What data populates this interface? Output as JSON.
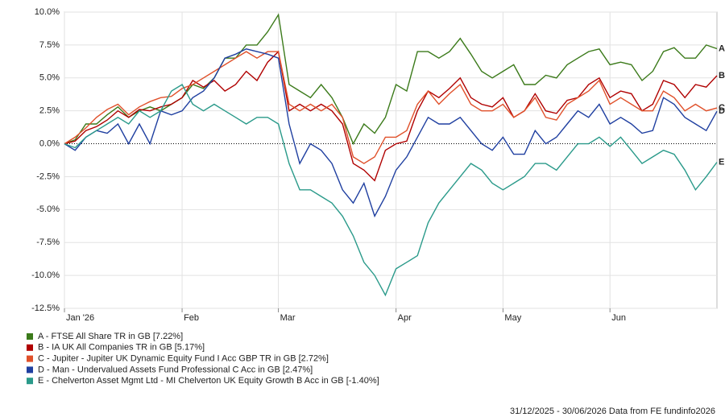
{
  "chart_data": {
    "type": "line",
    "categories": [
      "Jan '26",
      null,
      null,
      null,
      null,
      null,
      null,
      null,
      null,
      null,
      null,
      "Feb",
      null,
      null,
      null,
      null,
      null,
      null,
      null,
      null,
      "Mar",
      null,
      null,
      null,
      null,
      null,
      null,
      null,
      null,
      null,
      null,
      "Apr",
      null,
      null,
      null,
      null,
      null,
      null,
      null,
      null,
      null,
      "May",
      null,
      null,
      null,
      null,
      null,
      null,
      null,
      null,
      null,
      "Jun",
      null,
      null,
      null,
      null,
      null,
      null,
      null,
      null,
      null,
      null
    ],
    "series": [
      {
        "name": "A - FTSE All Share TR in GB [7.22%]",
        "label": "A",
        "color": "#3b7a1a",
        "values": [
          0,
          0.3,
          1.5,
          1.5,
          2.2,
          2.8,
          2.0,
          2.5,
          2.8,
          2.5,
          3.0,
          3.5,
          4.5,
          4.2,
          5.0,
          6.5,
          6.5,
          7.5,
          7.5,
          8.5,
          9.8,
          4.5,
          4.0,
          3.5,
          4.5,
          3.5,
          2.0,
          0,
          1.5,
          0.8,
          2.0,
          4.5,
          4.0,
          7.0,
          7.0,
          6.5,
          7.0,
          8.0,
          6.8,
          5.5,
          5.0,
          5.5,
          6.0,
          4.5,
          4.5,
          5.2,
          5.0,
          6.0,
          6.5,
          7.0,
          7.2,
          6.0,
          6.2,
          6.0,
          4.8,
          5.5,
          7.0,
          7.3,
          6.5,
          6.5,
          7.5,
          7.22
        ]
      },
      {
        "name": "B - IA UK All Companies TR in GB [5.17%]",
        "label": "B",
        "color": "#b00000",
        "values": [
          0,
          0.2,
          1.0,
          1.3,
          1.8,
          2.5,
          2.0,
          2.6,
          2.5,
          2.8,
          3.0,
          3.5,
          4.8,
          4.3,
          4.8,
          4.0,
          4.5,
          5.5,
          4.8,
          6.2,
          7.0,
          2.5,
          3.0,
          2.5,
          3.0,
          2.5,
          1.5,
          -1.5,
          -2.0,
          -2.8,
          -0.5,
          0,
          0.2,
          2.5,
          4.0,
          3.5,
          4.2,
          5.0,
          3.5,
          3.0,
          2.8,
          3.5,
          2.0,
          2.5,
          3.8,
          2.5,
          2.3,
          3.3,
          3.5,
          4.5,
          5.0,
          3.5,
          4.0,
          3.8,
          2.5,
          3.0,
          4.8,
          4.5,
          3.5,
          4.5,
          4.3,
          5.17
        ]
      },
      {
        "name": "C - Jupiter - Jupiter UK Dynamic Equity Fund I Acc GBP TR in GB [2.72%]",
        "label": "C",
        "color": "#e0502a",
        "values": [
          0,
          0.5,
          1.2,
          2.0,
          2.6,
          3.0,
          2.2,
          2.8,
          3.2,
          3.5,
          3.6,
          4.2,
          4.5,
          5.0,
          5.5,
          6.0,
          6.5,
          7.0,
          6.5,
          7.0,
          7.0,
          3.0,
          2.5,
          3.0,
          2.5,
          3.0,
          2.0,
          -1.0,
          -1.5,
          -1.0,
          0.5,
          0.5,
          1.0,
          3.0,
          4.0,
          3.0,
          3.8,
          4.5,
          3.0,
          2.5,
          2.5,
          3.0,
          2.0,
          2.5,
          3.5,
          2.0,
          1.8,
          3.0,
          3.5,
          4.0,
          4.8,
          3.0,
          3.5,
          3.0,
          2.5,
          2.5,
          4.0,
          3.5,
          2.5,
          3.0,
          2.5,
          2.72
        ]
      },
      {
        "name": "D - Man - Undervalued Assets Fund Professional C Acc in GB [2.47%]",
        "label": "D",
        "color": "#1f3fa0",
        "values": [
          0,
          -0.5,
          0.5,
          1.0,
          0.8,
          1.5,
          0,
          1.5,
          0,
          2.5,
          2.2,
          2.5,
          3.5,
          4.0,
          5.0,
          6.5,
          6.8,
          7.2,
          7.0,
          6.8,
          6.5,
          1.5,
          -1.5,
          0,
          -0.5,
          -1.5,
          -3.5,
          -4.5,
          -3.0,
          -5.5,
          -4.0,
          -2.0,
          -1.0,
          0.5,
          2.0,
          1.5,
          1.5,
          2.0,
          1.0,
          0,
          -0.5,
          0.5,
          -0.8,
          -0.8,
          1.0,
          0,
          0.5,
          1.5,
          2.5,
          2.0,
          3.0,
          1.5,
          2.0,
          1.5,
          0.8,
          1.0,
          3.5,
          3.0,
          2.0,
          1.5,
          1.0,
          2.47
        ]
      },
      {
        "name": "E - Chelverton Asset Mgmt Ltd - MI Chelverton UK Equity Growth B Acc in GB [-1.40%]",
        "label": "E",
        "color": "#2a9a8a",
        "values": [
          0,
          -0.3,
          0.5,
          1.0,
          1.5,
          2.0,
          1.5,
          2.5,
          2.0,
          2.5,
          4.0,
          4.5,
          3.0,
          2.5,
          3.0,
          2.5,
          2.0,
          1.5,
          2.0,
          2.0,
          1.5,
          -1.5,
          -3.5,
          -3.5,
          -4.0,
          -4.5,
          -5.5,
          -7.0,
          -9.0,
          -10.0,
          -11.5,
          -9.5,
          -9.0,
          -8.5,
          -6.0,
          -4.5,
          -3.5,
          -2.5,
          -1.5,
          -2.0,
          -3.0,
          -3.5,
          -3.0,
          -2.5,
          -1.5,
          -1.5,
          -2.0,
          -1.0,
          0,
          0,
          0.5,
          -0.2,
          0.5,
          -0.5,
          -1.5,
          -1.0,
          -0.5,
          -0.8,
          -2.0,
          -3.5,
          -2.5,
          -1.4
        ]
      }
    ],
    "ylim": [
      -12.5,
      10
    ],
    "yticks": [
      {
        "value": 10,
        "label": "10.0%"
      },
      {
        "value": 7.5,
        "label": "7.5%"
      },
      {
        "value": 5,
        "label": "5.0%"
      },
      {
        "value": 2.5,
        "label": "2.5%"
      },
      {
        "value": 0,
        "label": "0.0%"
      },
      {
        "value": -2.5,
        "label": "-2.5%"
      },
      {
        "value": -5,
        "label": "-5.0%"
      },
      {
        "value": -7.5,
        "label": "-7.5%"
      },
      {
        "value": -10,
        "label": "-10.0%"
      },
      {
        "value": -12.5,
        "label": "-12.5%"
      }
    ],
    "grid": true,
    "footer": "31/12/2025 - 30/06/2026 Data from FE fundinfo2026"
  }
}
